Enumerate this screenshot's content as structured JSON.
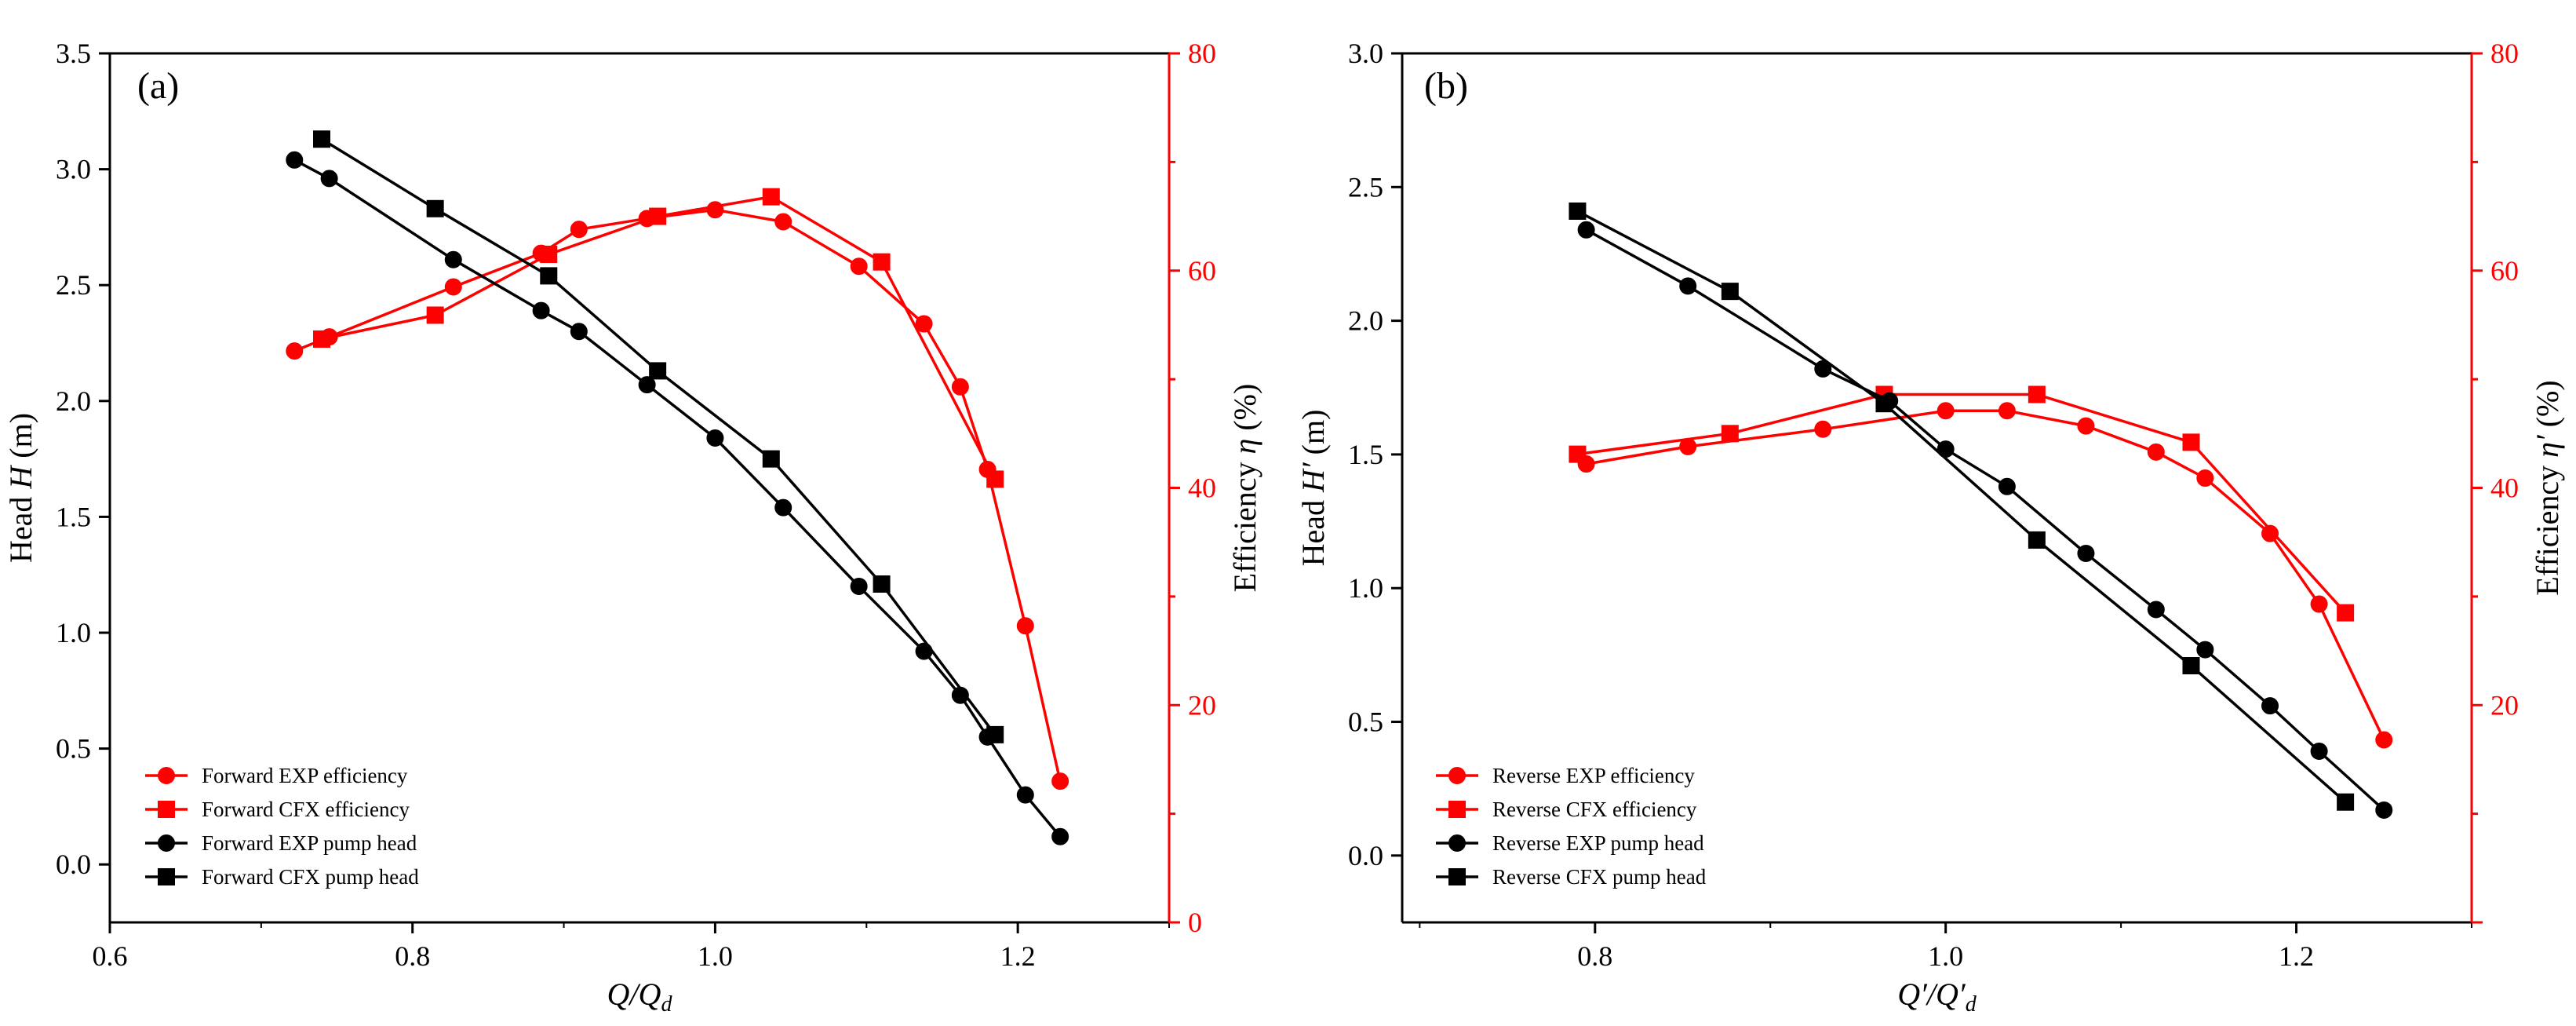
{
  "colors": {
    "exp_red": "#ff0000",
    "black": "#000000",
    "right_axis": "#ff0000"
  },
  "chart_data": [
    {
      "type": "line",
      "panel_label": "(a)",
      "xlabel": {
        "main": "Q/Q",
        "sub": "d"
      },
      "ylabel_left": {
        "prefix": "Head ",
        "symbol": "H",
        "suffix": " (m)"
      },
      "ylabel_right": {
        "prefix": "Efficiency ",
        "symbol": "η",
        "suffix": " (%)"
      },
      "xlim": [
        0.6,
        1.3
      ],
      "ylim_left": [
        -0.25,
        3.5
      ],
      "ylim_right": [
        0,
        80
      ],
      "xticks": [
        "0.6",
        "0.8",
        "1.0",
        "1.2"
      ],
      "yticks_left": [
        "0.0",
        "0.5",
        "1.0",
        "1.5",
        "2.0",
        "2.5",
        "3.0",
        "3.5"
      ],
      "yticks_right": [
        "0",
        "20",
        "40",
        "60",
        "80"
      ],
      "series": [
        {
          "name": "Forward EXP efficiency",
          "axis": "right",
          "marker": "circle",
          "color": "#ff0000",
          "x": [
            0.722,
            0.745,
            0.827,
            0.885,
            0.91,
            0.955,
            1.0,
            1.045,
            1.095,
            1.138,
            1.162,
            1.18,
            1.205,
            1.228
          ],
          "y": [
            52.6,
            53.9,
            58.5,
            61.6,
            63.8,
            64.8,
            65.6,
            64.5,
            60.4,
            55.1,
            49.3,
            41.7,
            27.3,
            13.0
          ]
        },
        {
          "name": "Forward CFX efficiency",
          "axis": "right",
          "marker": "square",
          "color": "#ff0000",
          "x": [
            0.74,
            0.815,
            0.89,
            0.962,
            1.037,
            1.11,
            1.185
          ],
          "y": [
            53.7,
            55.9,
            61.5,
            65.0,
            66.8,
            60.8,
            40.8
          ]
        },
        {
          "name": "Forward EXP pump head",
          "axis": "left",
          "marker": "circle",
          "color": "#000000",
          "x": [
            0.722,
            0.745,
            0.827,
            0.885,
            0.91,
            0.955,
            1.0,
            1.045,
            1.095,
            1.138,
            1.162,
            1.18,
            1.205,
            1.228
          ],
          "y": [
            3.04,
            2.96,
            2.61,
            2.39,
            2.3,
            2.07,
            1.84,
            1.54,
            1.2,
            0.92,
            0.73,
            0.55,
            0.3,
            0.12
          ]
        },
        {
          "name": "Forward CFX pump head",
          "axis": "left",
          "marker": "square",
          "color": "#000000",
          "x": [
            0.74,
            0.815,
            0.89,
            0.962,
            1.037,
            1.11,
            1.185
          ],
          "y": [
            3.13,
            2.83,
            2.54,
            2.13,
            1.75,
            1.21,
            0.56
          ]
        }
      ],
      "legend_position": "bottom-left"
    },
    {
      "type": "line",
      "panel_label": "(b)",
      "xlabel": {
        "main": "Q′/Q′",
        "sub": "d"
      },
      "ylabel_left": {
        "prefix": "Head ",
        "symbol": "H′",
        "suffix": " (m)"
      },
      "ylabel_right": {
        "prefix": "Efficiency ",
        "symbol": "η′",
        "suffix": " (%)"
      },
      "xlim": [
        0.69,
        1.3
      ],
      "ylim_left": [
        -0.25,
        3.0
      ],
      "ylim_right": [
        0,
        80
      ],
      "xticks": [
        "0.8",
        "1.0",
        "1.2"
      ],
      "yticks_left": [
        "0.0",
        "0.5",
        "1.0",
        "1.5",
        "2.0",
        "2.5",
        "3.0"
      ],
      "yticks_right": [
        "20",
        "40",
        "60",
        "80"
      ],
      "series": [
        {
          "name": "Reverse EXP efficiency",
          "axis": "right",
          "marker": "circle",
          "color": "#ff0000",
          "x": [
            0.795,
            0.853,
            0.93,
            1.0,
            1.035,
            1.08,
            1.12,
            1.148,
            1.185,
            1.213,
            1.25
          ],
          "y": [
            42.2,
            43.8,
            45.4,
            47.1,
            47.1,
            45.7,
            43.3,
            40.9,
            35.8,
            29.3,
            16.8
          ]
        },
        {
          "name": "Reverse CFX efficiency",
          "axis": "right",
          "marker": "square",
          "color": "#ff0000",
          "x": [
            0.79,
            0.877,
            0.965,
            1.052,
            1.14,
            1.228
          ],
          "y": [
            43.1,
            45.0,
            48.6,
            48.6,
            44.2,
            28.5
          ]
        },
        {
          "name": "Reverse EXP pump head",
          "axis": "left",
          "marker": "circle",
          "color": "#000000",
          "x": [
            0.795,
            0.853,
            0.93,
            0.968,
            1.0,
            1.035,
            1.08,
            1.12,
            1.148,
            1.185,
            1.213,
            1.25
          ],
          "y": [
            2.34,
            2.13,
            1.82,
            1.7,
            1.52,
            1.38,
            1.13,
            0.92,
            0.77,
            0.56,
            0.39,
            0.17
          ]
        },
        {
          "name": "Reverse CFX pump head",
          "axis": "left",
          "marker": "square",
          "color": "#000000",
          "x": [
            0.79,
            0.877,
            0.965,
            1.052,
            1.14,
            1.228
          ],
          "y": [
            2.41,
            2.11,
            1.69,
            1.18,
            0.71,
            0.2
          ]
        }
      ],
      "legend_position": "bottom-left"
    }
  ]
}
